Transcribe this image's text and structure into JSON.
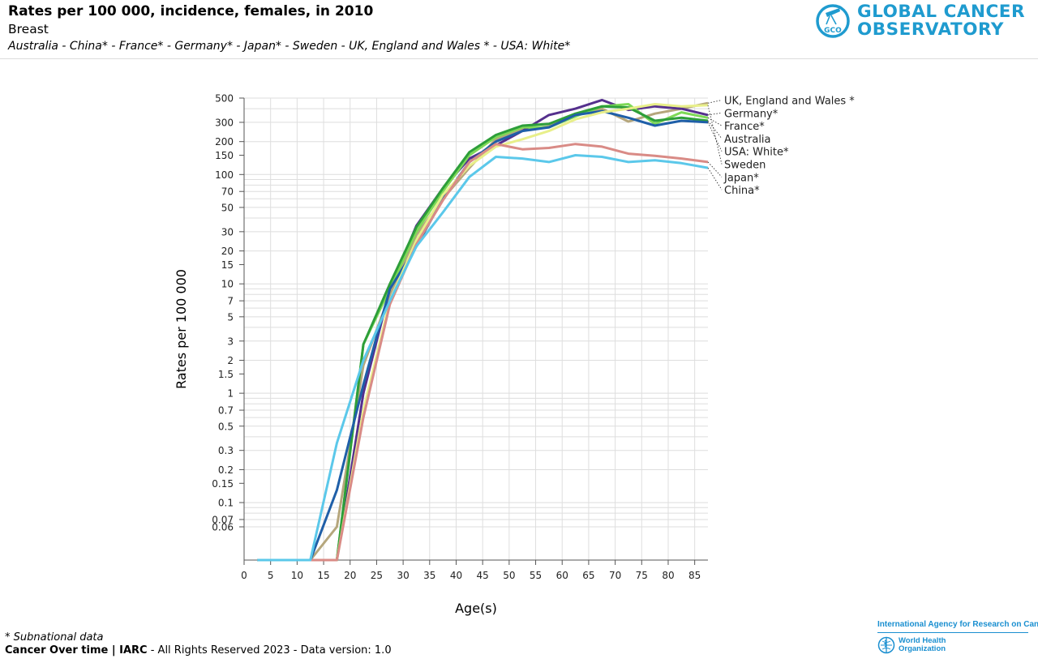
{
  "header": {
    "title": "Rates per 100 000, incidence, females, in 2010",
    "subtitle": "Breast",
    "populations": "Australia - China* - France* - Germany* - Japan* - Sweden - UK, England and Wales * - USA: White*"
  },
  "logo": {
    "line1": "GLOBAL CANCER",
    "line2": "OBSERVATORY",
    "badge": "GCO",
    "color": "#1f9bcf"
  },
  "footer": {
    "footnote": "* Subnational data",
    "brand": "Cancer Over time | IARC",
    "rights": " - All Rights Reserved 2023 - Data version: 1.0",
    "iarc": "International Agency for Research on Cancer",
    "who_line1": "World Health",
    "who_line2": "Organization"
  },
  "chart_data": {
    "type": "line",
    "xlabel": "Age(s)",
    "ylabel": "Rates per 100 000",
    "yscale": "log",
    "xlim": [
      0,
      87.5
    ],
    "ylim": [
      0.03,
      500
    ],
    "grid": true,
    "xticks": [
      0,
      5,
      10,
      15,
      20,
      25,
      30,
      35,
      40,
      45,
      50,
      55,
      60,
      65,
      70,
      75,
      80,
      85
    ],
    "yticks": [
      {
        "v": 500,
        "label": "500"
      },
      {
        "v": 300,
        "label": "300"
      },
      {
        "v": 200,
        "label": "200"
      },
      {
        "v": 150,
        "label": "150"
      },
      {
        "v": 100,
        "label": "100"
      },
      {
        "v": 70,
        "label": "70"
      },
      {
        "v": 50,
        "label": "50"
      },
      {
        "v": 30,
        "label": "30"
      },
      {
        "v": 20,
        "label": "20"
      },
      {
        "v": 15,
        "label": "15"
      },
      {
        "v": 10,
        "label": "10"
      },
      {
        "v": 7,
        "label": "7"
      },
      {
        "v": 5,
        "label": "5"
      },
      {
        "v": 3,
        "label": "3"
      },
      {
        "v": 2,
        "label": "2"
      },
      {
        "v": 1.5,
        "label": "1.5"
      },
      {
        "v": 1,
        "label": "1"
      },
      {
        "v": 0.7,
        "label": "0.7"
      },
      {
        "v": 0.5,
        "label": "0.5"
      },
      {
        "v": 0.3,
        "label": "0.3"
      },
      {
        "v": 0.2,
        "label": "0.2"
      },
      {
        "v": 0.15,
        "label": "0.15"
      },
      {
        "v": 0.1,
        "label": "0.1"
      },
      {
        "v": 0.07,
        "label": "0.07"
      },
      {
        "v": 0.06,
        "label": "0.06"
      }
    ],
    "x": [
      2.5,
      7.5,
      12.5,
      17.5,
      22.5,
      27.5,
      32.5,
      37.5,
      42.5,
      47.5,
      52.5,
      57.5,
      62.5,
      67.5,
      72.5,
      77.5,
      82.5,
      87.5
    ],
    "series": [
      {
        "name": "UK, England and Wales *",
        "color": "#b5a67c",
        "values": [
          0,
          0,
          0,
          0.06,
          1.8,
          8,
          28,
          60,
          115,
          210,
          260,
          275,
          355,
          400,
          305,
          360,
          400,
          450
        ]
      },
      {
        "name": "Germany*",
        "color": "#55308d",
        "values": [
          0,
          0,
          0,
          0,
          1.0,
          9,
          34,
          75,
          140,
          185,
          250,
          350,
          400,
          480,
          390,
          420,
          400,
          350
        ]
      },
      {
        "name": "France*",
        "color": "#7ed957",
        "values": [
          0,
          0,
          0,
          0,
          2.8,
          9,
          30,
          70,
          150,
          220,
          270,
          270,
          340,
          420,
          440,
          290,
          370,
          330
        ]
      },
      {
        "name": "Australia",
        "color": "#2d9e3a",
        "values": [
          0,
          0,
          0,
          0,
          2.8,
          10,
          33,
          75,
          160,
          230,
          280,
          290,
          360,
          420,
          410,
          310,
          330,
          310
        ]
      },
      {
        "name": "USA: White*",
        "color": "#1f5fa8",
        "values": [
          0,
          0,
          0,
          0.13,
          1.2,
          9,
          22,
          60,
          130,
          200,
          250,
          270,
          350,
          380,
          330,
          280,
          310,
          300
        ]
      },
      {
        "name": "Sweden",
        "color": "#e8ef8a",
        "values": [
          0,
          0,
          0,
          0,
          0.7,
          7,
          25,
          65,
          120,
          180,
          210,
          250,
          320,
          370,
          400,
          440,
          420,
          430
        ]
      },
      {
        "name": "Japan*",
        "color": "#d98b86",
        "values": [
          0,
          0,
          0,
          0,
          0.6,
          6.5,
          23,
          58,
          130,
          190,
          170,
          175,
          190,
          180,
          155,
          148,
          140,
          130
        ]
      },
      {
        "name": "China*",
        "color": "#5bc8ea",
        "values": [
          0,
          0,
          0,
          0.35,
          2.0,
          7,
          22,
          45,
          95,
          145,
          140,
          130,
          150,
          145,
          130,
          135,
          127,
          115
        ]
      }
    ]
  }
}
